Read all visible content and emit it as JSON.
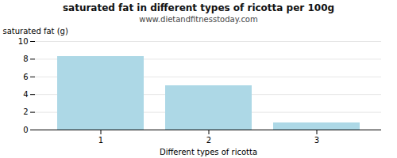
{
  "chart_data": {
    "type": "bar",
    "title": "saturated fat in different types of ricotta per 100g",
    "subtitle": "www.dietandfitnesstoday.com",
    "xlabel": "Different types of ricotta",
    "ylabel": "saturated fat (g)",
    "categories": [
      1,
      2,
      3
    ],
    "values": [
      8.3,
      5.0,
      0.8
    ],
    "color": "#add8e6",
    "ylim": [
      0,
      10
    ],
    "yticks": [
      0,
      2,
      4,
      6,
      8,
      10
    ],
    "grid": true
  }
}
